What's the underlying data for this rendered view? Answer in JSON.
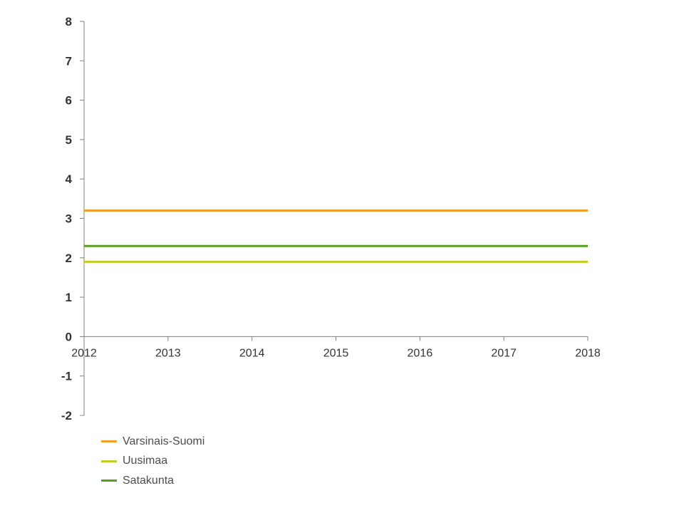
{
  "chart_data": {
    "type": "line",
    "title": "",
    "xlabel": "",
    "ylabel": "",
    "x": [
      2012,
      2013,
      2014,
      2015,
      2016,
      2017,
      2018
    ],
    "ylim": [
      -2,
      8
    ],
    "yticks": [
      8,
      7,
      6,
      5,
      4,
      3,
      2,
      1,
      0,
      -1,
      -2
    ],
    "grid": false,
    "legend_position": "bottom-left",
    "series": [
      {
        "name": "Varsinais-Suomi",
        "color": "#f0a028",
        "values": [
          3.2,
          3.2,
          3.2,
          3.2,
          3.2,
          3.2,
          3.2
        ]
      },
      {
        "name": "Uusimaa",
        "color": "#c3cc23",
        "values": [
          1.9,
          1.9,
          1.9,
          1.9,
          1.9,
          1.9,
          1.9
        ]
      },
      {
        "name": "Satakunta",
        "color": "#5a9e1e",
        "values": [
          2.3,
          2.3,
          2.3,
          2.3,
          2.3,
          2.3,
          2.3
        ]
      }
    ]
  }
}
